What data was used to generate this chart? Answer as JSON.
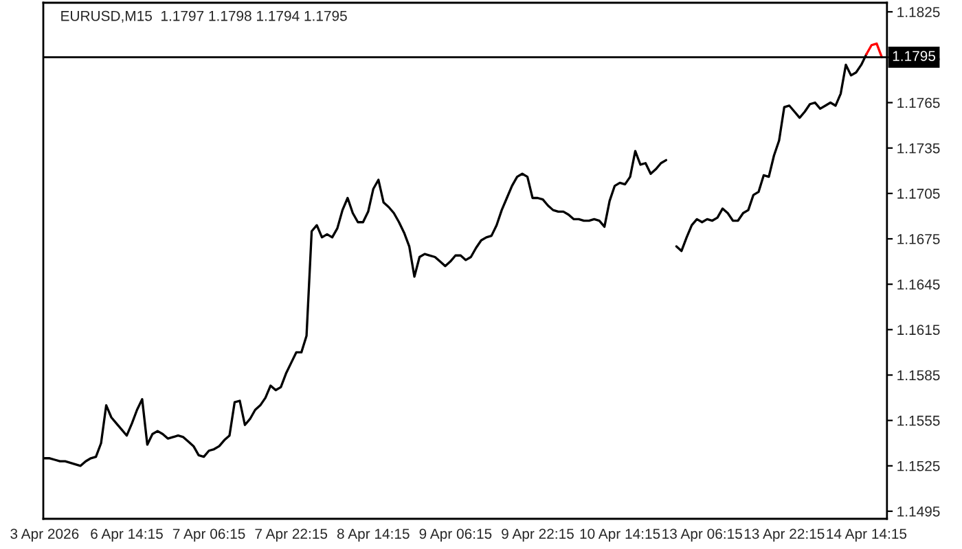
{
  "chart_data": {
    "type": "line",
    "title": "EURUSD,M15  1.1797 1.1798 1.1794 1.1795",
    "categories": [
      "3 Apr 2026",
      null,
      null,
      null,
      null,
      null,
      null,
      null,
      null,
      null,
      null,
      null,
      null,
      null,
      null,
      null,
      "6 Apr 14:15",
      null,
      null,
      null,
      null,
      null,
      null,
      null,
      null,
      null,
      null,
      null,
      null,
      null,
      null,
      null,
      "7 Apr 06:15",
      null,
      null,
      null,
      null,
      null,
      null,
      null,
      null,
      null,
      null,
      null,
      null,
      null,
      null,
      null,
      "7 Apr 22:15",
      null,
      null,
      null,
      null,
      null,
      null,
      null,
      null,
      null,
      null,
      null,
      null,
      null,
      null,
      null,
      "8 Apr 14:15",
      null,
      null,
      null,
      null,
      null,
      null,
      null,
      null,
      null,
      null,
      null,
      null,
      null,
      null,
      null,
      "9 Apr 06:15",
      null,
      null,
      null,
      null,
      null,
      null,
      null,
      null,
      null,
      null,
      null,
      null,
      null,
      null,
      null,
      "9 Apr 22:15",
      null,
      null,
      null,
      null,
      null,
      null,
      null,
      null,
      null,
      null,
      null,
      null,
      null,
      null,
      null,
      "10 Apr 14:15",
      null,
      null,
      null,
      null,
      null,
      null,
      null,
      null,
      null,
      null,
      null,
      null,
      null,
      null,
      null,
      "13 Apr 06:15",
      null,
      null,
      null,
      null,
      null,
      null,
      null,
      null,
      null,
      null,
      null,
      null,
      null,
      null,
      null,
      "13 Apr 22:15",
      null,
      null,
      null,
      null,
      null,
      null,
      null,
      null,
      null,
      null,
      null,
      null,
      null,
      null,
      null,
      "14 Apr 14:15",
      null,
      null,
      null
    ],
    "series": [
      {
        "color": "#000000",
        "values": [
          1.153,
          1.153,
          1.1529,
          1.1528,
          1.1528,
          1.1527,
          1.1526,
          1.1525,
          1.1528,
          1.153,
          1.1531,
          1.154,
          1.1565,
          1.1557,
          1.1553,
          1.1549,
          1.1545,
          1.1553,
          1.1562,
          1.1569,
          1.1539,
          1.1546,
          1.1548,
          1.1546,
          1.1543,
          1.1544,
          1.1545,
          1.1544,
          1.1541,
          1.1538,
          1.1532,
          1.1531,
          1.1535,
          1.1536,
          1.1538,
          1.1542,
          1.1545,
          1.1567,
          1.1568,
          1.1552,
          1.1556,
          1.1562,
          1.1565,
          1.157,
          1.1578,
          1.1575,
          1.1577,
          1.1586,
          1.1593,
          1.16,
          1.16,
          1.1611,
          1.168,
          1.1684,
          1.1676,
          1.1678,
          1.1676,
          1.1682,
          1.1694,
          1.1702,
          1.1692,
          1.1686,
          1.1686,
          1.1693,
          1.1708,
          1.1714,
          1.1699,
          1.1696,
          1.1692,
          1.1686,
          1.1679,
          1.167,
          1.165,
          1.1663,
          1.1665,
          1.1664,
          1.1663,
          1.166,
          1.1657,
          1.166,
          1.1664,
          1.1664,
          1.1661,
          1.1663,
          1.1669,
          1.1674,
          1.1676,
          1.1677,
          1.1684,
          1.1694,
          1.1702,
          1.171,
          1.1716,
          1.1718,
          1.1716,
          1.1702,
          1.1702,
          1.1701,
          1.1697,
          1.1694,
          1.1693,
          1.1693,
          1.1691,
          1.1688,
          1.1688,
          1.1687,
          1.1687,
          1.1688,
          1.1687,
          1.1683,
          1.17,
          1.171,
          1.1712,
          1.1711,
          1.1716,
          1.1733,
          1.1724,
          1.1725,
          1.1718,
          1.1721,
          1.1725,
          1.1727,
          null,
          1.167,
          1.1667,
          1.1676,
          1.1684,
          1.1688,
          1.1686,
          1.1688,
          1.1687,
          1.1689,
          1.1695,
          1.1692,
          1.1687,
          1.1687,
          1.1692,
          1.1694,
          1.1704,
          1.1706,
          1.1717,
          1.1716,
          1.173,
          1.174,
          1.1762,
          1.1763,
          1.1759,
          1.1755,
          1.1759,
          1.1764,
          1.1765,
          1.1761,
          1.1763,
          1.1765,
          1.1763,
          1.1771,
          1.179,
          1.1783,
          1.1785,
          1.179,
          1.1797,
          null,
          null,
          null
        ]
      },
      {
        "color": "#ff0000",
        "values": [
          null,
          null,
          null,
          null,
          null,
          null,
          null,
          null,
          null,
          null,
          null,
          null,
          null,
          null,
          null,
          null,
          null,
          null,
          null,
          null,
          null,
          null,
          null,
          null,
          null,
          null,
          null,
          null,
          null,
          null,
          null,
          null,
          null,
          null,
          null,
          null,
          null,
          null,
          null,
          null,
          null,
          null,
          null,
          null,
          null,
          null,
          null,
          null,
          null,
          null,
          null,
          null,
          null,
          null,
          null,
          null,
          null,
          null,
          null,
          null,
          null,
          null,
          null,
          null,
          null,
          null,
          null,
          null,
          null,
          null,
          null,
          null,
          null,
          null,
          null,
          null,
          null,
          null,
          null,
          null,
          null,
          null,
          null,
          null,
          null,
          null,
          null,
          null,
          null,
          null,
          null,
          null,
          null,
          null,
          null,
          null,
          null,
          null,
          null,
          null,
          null,
          null,
          null,
          null,
          null,
          null,
          null,
          null,
          null,
          null,
          null,
          null,
          null,
          null,
          null,
          null,
          null,
          null,
          null,
          null,
          null,
          null,
          null,
          null,
          null,
          null,
          null,
          null,
          null,
          null,
          null,
          null,
          null,
          null,
          null,
          null,
          null,
          null,
          null,
          null,
          null,
          null,
          null,
          null,
          null,
          null,
          null,
          null,
          null,
          null,
          null,
          null,
          null,
          null,
          null,
          null,
          null,
          null,
          null,
          null,
          1.1797,
          1.1803,
          1.1804,
          1.1795
        ]
      }
    ],
    "ylim": [
      1.149,
      1.1831
    ],
    "yticks": [
      1.1495,
      1.1525,
      1.1555,
      1.1585,
      1.1615,
      1.1645,
      1.1675,
      1.1705,
      1.1735,
      1.1765,
      1.1795,
      1.1825
    ],
    "ref_lines": [
      {
        "axis": "y",
        "value": 1.1795,
        "label": "1.1795",
        "color": "#000000"
      }
    ],
    "grid": false,
    "legend": false
  }
}
